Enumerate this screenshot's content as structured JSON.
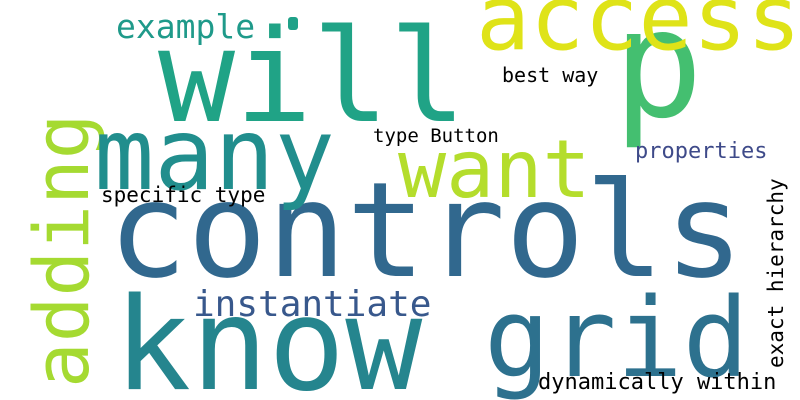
{
  "words": [
    {
      "id": "controls",
      "text": "controls",
      "color": "#31688e"
    },
    {
      "id": "know",
      "text": "know",
      "color": "#25858e"
    },
    {
      "id": "will",
      "text": "will",
      "color": "#20a386"
    },
    {
      "id": "p",
      "text": "p",
      "color": "#44bf70"
    },
    {
      "id": "adding",
      "text": "adding",
      "color": "#a5da31"
    },
    {
      "id": "many",
      "text": "many",
      "color": "#218e8d"
    },
    {
      "id": "access",
      "text": "access",
      "color": "#dfe318"
    },
    {
      "id": "grid",
      "text": "grid",
      "color": "#2d718e"
    },
    {
      "id": "want",
      "text": "want",
      "color": "#b4dd2c"
    },
    {
      "id": "instantiate",
      "text": "instantiate",
      "color": "#38588c"
    },
    {
      "id": "example",
      "text": "example",
      "color": "#1f9a8a"
    },
    {
      "id": "dynamically-within",
      "text": "dynamically within",
      "color": "#3b528b"
    },
    {
      "id": "exact-hierarchy",
      "text": "exact hierarchy",
      "color": "#482173"
    },
    {
      "id": "properties",
      "text": "properties",
      "color": "#3e4a89"
    },
    {
      "id": "specific-type",
      "text": "specific type",
      "color": "#2d718e"
    },
    {
      "id": "best-way",
      "text": "best way",
      "color": "#c2df23"
    },
    {
      "id": "type-button",
      "text": "type Button",
      "color": "#e5e419"
    }
  ],
  "dot_color": "#1fa188"
}
